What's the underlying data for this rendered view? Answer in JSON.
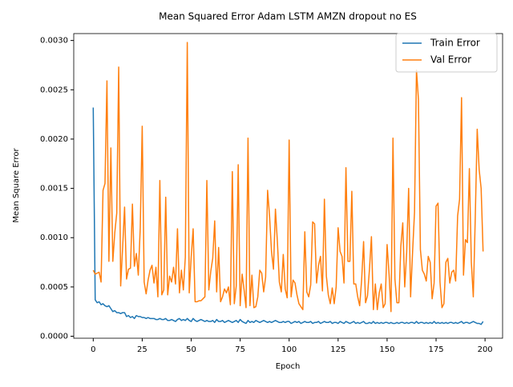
{
  "chart_data": {
    "type": "line",
    "title": "Mean Squared Error  Adam LSTM AMZN dropout no ES",
    "xlabel": "Epoch",
    "ylabel": "Mean Square Error",
    "x": [
      0,
      1,
      2,
      3,
      4,
      5,
      6,
      7,
      8,
      9,
      10,
      11,
      12,
      13,
      14,
      15,
      16,
      17,
      18,
      19,
      20,
      21,
      22,
      23,
      24,
      25,
      26,
      27,
      28,
      29,
      30,
      31,
      32,
      33,
      34,
      35,
      36,
      37,
      38,
      39,
      40,
      41,
      42,
      43,
      44,
      45,
      46,
      47,
      48,
      49,
      50,
      51,
      52,
      53,
      54,
      55,
      56,
      57,
      58,
      59,
      60,
      61,
      62,
      63,
      64,
      65,
      66,
      67,
      68,
      69,
      70,
      71,
      72,
      73,
      74,
      75,
      76,
      77,
      78,
      79,
      80,
      81,
      82,
      83,
      84,
      85,
      86,
      87,
      88,
      89,
      90,
      91,
      92,
      93,
      94,
      95,
      96,
      97,
      98,
      99,
      100,
      101,
      102,
      103,
      104,
      105,
      106,
      107,
      108,
      109,
      110,
      111,
      112,
      113,
      114,
      115,
      116,
      117,
      118,
      119,
      120,
      121,
      122,
      123,
      124,
      125,
      126,
      127,
      128,
      129,
      130,
      131,
      132,
      133,
      134,
      135,
      136,
      137,
      138,
      139,
      140,
      141,
      142,
      143,
      144,
      145,
      146,
      147,
      148,
      149,
      150,
      151,
      152,
      153,
      154,
      155,
      156,
      157,
      158,
      159,
      160,
      161,
      162,
      163,
      164,
      165,
      166,
      167,
      168,
      169,
      170,
      171,
      172,
      173,
      174,
      175,
      176,
      177,
      178,
      179,
      180,
      181,
      182,
      183,
      184,
      185,
      186,
      187,
      188,
      189,
      190,
      191,
      192,
      193,
      194,
      195,
      196,
      197,
      198,
      199
    ],
    "series": [
      {
        "name": "Train Error",
        "color": "#1f77b4",
        "values": [
          0.00232,
          0.00037,
          0.00034,
          0.00035,
          0.00032,
          0.00033,
          0.00031,
          0.0003,
          0.00031,
          0.00028,
          0.00025,
          0.00026,
          0.00024,
          0.00024,
          0.00023,
          0.00024,
          0.00024,
          0.0002,
          0.00021,
          0.00019,
          0.0002,
          0.00018,
          0.00021,
          0.0002,
          0.0002,
          0.00019,
          0.00019,
          0.00018,
          0.00019,
          0.00018,
          0.00018,
          0.00018,
          0.00017,
          0.00017,
          0.00018,
          0.00017,
          0.00017,
          0.00018,
          0.00016,
          0.00016,
          0.00017,
          0.00016,
          0.00015,
          0.00017,
          0.00018,
          0.00016,
          0.00017,
          0.00016,
          0.00018,
          0.00016,
          0.00015,
          0.00018,
          0.00016,
          0.00015,
          0.00016,
          0.00017,
          0.00016,
          0.00015,
          0.00016,
          0.00015,
          0.00015,
          0.00016,
          0.00014,
          0.00017,
          0.00015,
          0.00015,
          0.00016,
          0.00014,
          0.00015,
          0.00016,
          0.00015,
          0.00014,
          0.00015,
          0.00016,
          0.00014,
          0.00017,
          0.00015,
          0.00014,
          0.00013,
          0.00016,
          0.00014,
          0.00015,
          0.00014,
          0.00016,
          0.00015,
          0.00014,
          0.00015,
          0.00016,
          0.00015,
          0.00014,
          0.00015,
          0.00014,
          0.00015,
          0.00016,
          0.00015,
          0.00014,
          0.00014,
          0.00015,
          0.00014,
          0.00015,
          0.00015,
          0.00013,
          0.00014,
          0.00015,
          0.00014,
          0.00015,
          0.00013,
          0.00014,
          0.00015,
          0.00014,
          0.00014,
          0.00015,
          0.00013,
          0.00014,
          0.00014,
          0.00015,
          0.00013,
          0.00014,
          0.00015,
          0.00014,
          0.00014,
          0.00015,
          0.00013,
          0.00014,
          0.00014,
          0.00013,
          0.00015,
          0.00014,
          0.00013,
          0.00015,
          0.00014,
          0.00013,
          0.00014,
          0.00015,
          0.00013,
          0.00014,
          0.00013,
          0.00014,
          0.00015,
          0.00013,
          0.00013,
          0.00014,
          0.00013,
          0.00015,
          0.00013,
          0.00014,
          0.00013,
          0.00014,
          0.00013,
          0.00014,
          0.00014,
          0.00013,
          0.00014,
          0.00013,
          0.00013,
          0.00014,
          0.00013,
          0.00014,
          0.00014,
          0.00013,
          0.00014,
          0.00013,
          0.00014,
          0.00014,
          0.00013,
          0.00015,
          0.00013,
          0.00014,
          0.00014,
          0.00013,
          0.00014,
          0.00013,
          0.00014,
          0.00013,
          0.00015,
          0.00013,
          0.00014,
          0.00013,
          0.00014,
          0.00013,
          0.00014,
          0.00013,
          0.00014,
          0.00014,
          0.00013,
          0.00014,
          0.00013,
          0.00014,
          0.00015,
          0.00013,
          0.00014,
          0.00014,
          0.00013,
          0.00014,
          0.00015,
          0.00014,
          0.00013,
          0.00013,
          0.00012,
          0.00015
        ]
      },
      {
        "name": "Val Error",
        "color": "#ff7f0e",
        "values": [
          0.00067,
          0.00063,
          0.00064,
          0.00065,
          0.00055,
          0.00148,
          0.00155,
          0.00259,
          0.00076,
          0.00191,
          0.00076,
          0.00105,
          0.00125,
          0.00273,
          0.00051,
          0.0009,
          0.00131,
          0.00058,
          0.00068,
          0.00069,
          0.00134,
          0.00071,
          0.00084,
          0.00062,
          0.0011,
          0.00213,
          0.00055,
          0.00043,
          0.00057,
          0.00067,
          0.00072,
          0.00054,
          0.0007,
          0.0004,
          0.00158,
          0.00042,
          0.00047,
          0.00141,
          0.00042,
          0.00061,
          0.00055,
          0.0007,
          0.00053,
          0.00109,
          0.00044,
          0.00067,
          0.00047,
          0.0008,
          0.00298,
          0.00044,
          0.0008,
          0.00109,
          0.00035,
          0.00035,
          0.00036,
          0.00036,
          0.00038,
          0.0004,
          0.00158,
          0.00047,
          0.00066,
          0.00079,
          0.00117,
          0.00045,
          0.0009,
          0.00035,
          0.0004,
          0.00048,
          0.00044,
          0.0005,
          0.00032,
          0.00167,
          0.00033,
          0.00051,
          0.00174,
          0.00031,
          0.00063,
          0.00047,
          0.00029,
          0.00201,
          0.00031,
          0.00062,
          0.00029,
          0.0003,
          0.0004,
          0.00067,
          0.00064,
          0.00045,
          0.0006,
          0.00148,
          0.00122,
          0.00086,
          0.00068,
          0.00129,
          0.00096,
          0.00055,
          0.00045,
          0.00083,
          0.00048,
          0.00039,
          0.00199,
          0.0004,
          0.00057,
          0.00054,
          0.00042,
          0.00033,
          0.0003,
          0.00027,
          0.00106,
          0.00045,
          0.0004,
          0.00052,
          0.00116,
          0.00114,
          0.00054,
          0.00072,
          0.00081,
          0.00046,
          0.00139,
          0.00061,
          0.00042,
          0.00033,
          0.00049,
          0.00033,
          0.0005,
          0.0011,
          0.00086,
          0.00081,
          0.00054,
          0.00171,
          0.00076,
          0.00076,
          0.00147,
          0.00053,
          0.00053,
          0.0004,
          0.00031,
          0.00057,
          0.00096,
          0.00034,
          0.00041,
          0.00068,
          0.00101,
          0.00027,
          0.00053,
          0.00027,
          0.00044,
          0.00053,
          0.00029,
          0.00033,
          0.00093,
          0.00063,
          0.00025,
          0.00201,
          0.00058,
          0.00034,
          0.00034,
          0.00091,
          0.00115,
          0.0005,
          0.00085,
          0.0015,
          0.0004,
          0.00085,
          0.00126,
          0.0027,
          0.0024,
          0.00088,
          0.00067,
          0.00063,
          0.00056,
          0.00081,
          0.00075,
          0.00038,
          0.00054,
          0.00132,
          0.00135,
          0.00055,
          0.00029,
          0.00033,
          0.00075,
          0.00079,
          0.00054,
          0.00065,
          0.00067,
          0.00056,
          0.00122,
          0.00139,
          0.00242,
          0.00062,
          0.00098,
          0.00095,
          0.0017,
          0.00075,
          0.0004,
          0.0012,
          0.0021,
          0.00169,
          0.0015,
          0.00086
        ]
      }
    ],
    "xlim": [
      -9.95,
      208.95
    ],
    "ylim": [
      -2e-05,
      0.00307
    ],
    "xticks": [
      0,
      25,
      50,
      75,
      100,
      125,
      150,
      175,
      200
    ],
    "yticks": [
      {
        "value": 0,
        "label": "0.0000"
      },
      {
        "value": 0.0005,
        "label": "0.0005"
      },
      {
        "value": 0.001,
        "label": "0.0010"
      },
      {
        "value": 0.0015,
        "label": "0.0015"
      },
      {
        "value": 0.002,
        "label": "0.0020"
      },
      {
        "value": 0.0025,
        "label": "0.0025"
      },
      {
        "value": 0.003,
        "label": "0.0030"
      }
    ],
    "legend": "upper right",
    "grid": false
  }
}
